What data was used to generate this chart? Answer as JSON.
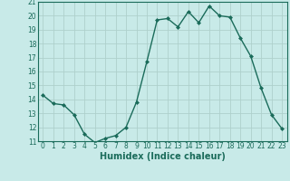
{
  "x": [
    0,
    1,
    2,
    3,
    4,
    5,
    6,
    7,
    8,
    9,
    10,
    11,
    12,
    13,
    14,
    15,
    16,
    17,
    18,
    19,
    20,
    21,
    22,
    23
  ],
  "y": [
    14.3,
    13.7,
    13.6,
    12.9,
    11.5,
    10.9,
    11.2,
    11.4,
    12.0,
    13.8,
    16.7,
    19.7,
    19.8,
    19.2,
    20.3,
    19.5,
    20.7,
    20.0,
    19.9,
    18.4,
    17.1,
    14.8,
    12.9,
    11.9
  ],
  "line_color": "#1a6b5a",
  "marker": "D",
  "marker_size": 2.0,
  "bg_color": "#c8eae8",
  "grid_color": "#aed0cc",
  "xlabel": "Humidex (Indice chaleur)",
  "ylim": [
    11,
    21
  ],
  "xlim": [
    -0.5,
    23.5
  ],
  "yticks": [
    11,
    12,
    13,
    14,
    15,
    16,
    17,
    18,
    19,
    20,
    21
  ],
  "xticks": [
    0,
    1,
    2,
    3,
    4,
    5,
    6,
    7,
    8,
    9,
    10,
    11,
    12,
    13,
    14,
    15,
    16,
    17,
    18,
    19,
    20,
    21,
    22,
    23
  ],
  "tick_label_fontsize": 5.5,
  "xlabel_fontsize": 7.0,
  "linewidth": 1.0
}
